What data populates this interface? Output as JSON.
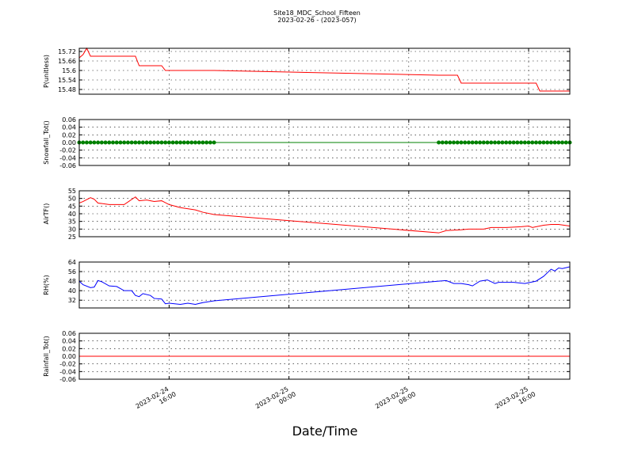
{
  "chart_data": [
    {
      "type": "line",
      "title": "Site18_MDC_School_Fifteen",
      "subtitle": "2023-02-26 - (2023-057)",
      "ylabel": "P(unitless)",
      "ylim": [
        15.45,
        15.74
      ],
      "yticks": [
        15.48,
        15.54,
        15.6,
        {
          "value": 15.66,
          "label": "15.66"
        },
        15.72
      ],
      "grid": true,
      "x": [
        "2023-02-24 10:00",
        "2023-02-24 10:15",
        "2023-02-24 10:30",
        "2023-02-24 10:45",
        "2023-02-24 13:45",
        "2023-02-24 14:00",
        "2023-02-24 15:30",
        "2023-02-24 15:45",
        "2023-02-24 19:00",
        "2023-02-25 10:00",
        "2023-02-25 11:15",
        "2023-02-25 11:30",
        "2023-02-25 16:30",
        "2023-02-25 16:45",
        "2023-02-25 18:45"
      ],
      "series": [
        {
          "color": "#ff0000",
          "values": [
            15.68,
            15.7,
            15.74,
            15.69,
            15.69,
            15.63,
            15.63,
            15.6,
            15.6,
            15.57,
            15.57,
            15.52,
            15.52,
            15.47,
            15.47
          ]
        }
      ]
    },
    {
      "type": "line",
      "ylabel": "Snowfall_Tot()",
      "marker": "o",
      "ylim": [
        -0.06,
        0.06
      ],
      "yticks": [
        -0.06,
        -0.04,
        -0.02,
        {
          "value": 0,
          "label": "0.00"
        },
        0.02,
        0.04,
        0.06
      ],
      "grid": true,
      "x": [
        "2023-02-24 10:00",
        "2023-02-24 10:15",
        "2023-02-24 10:30",
        "2023-02-24 10:45",
        "2023-02-24 11:00",
        "2023-02-24 11:15",
        "2023-02-24 11:30",
        "2023-02-24 11:45",
        "2023-02-24 12:00",
        "2023-02-24 12:15",
        "2023-02-24 12:30",
        "2023-02-24 12:45",
        "2023-02-24 13:00",
        "2023-02-24 13:15",
        "2023-02-24 13:30",
        "2023-02-24 13:45",
        "2023-02-24 14:00",
        "2023-02-24 14:15",
        "2023-02-24 14:30",
        "2023-02-24 14:45",
        "2023-02-24 15:00",
        "2023-02-24 15:15",
        "2023-02-24 15:30",
        "2023-02-24 15:45",
        "2023-02-24 16:00",
        "2023-02-24 16:15",
        "2023-02-24 16:30",
        "2023-02-24 16:45",
        "2023-02-24 17:00",
        "2023-02-24 17:15",
        "2023-02-24 17:30",
        "2023-02-24 17:45",
        "2023-02-24 18:00",
        "2023-02-24 18:15",
        "2023-02-24 18:30",
        "2023-02-24 18:45",
        "2023-02-24 19:00",
        "2023-02-25 10:00",
        "2023-02-25 10:15",
        "2023-02-25 10:30",
        "2023-02-25 10:45",
        "2023-02-25 11:00",
        "2023-02-25 11:15",
        "2023-02-25 11:30",
        "2023-02-25 11:45",
        "2023-02-25 12:00",
        "2023-02-25 12:15",
        "2023-02-25 12:30",
        "2023-02-25 12:45",
        "2023-02-25 13:00",
        "2023-02-25 13:15",
        "2023-02-25 13:30",
        "2023-02-25 13:45",
        "2023-02-25 14:00",
        "2023-02-25 14:15",
        "2023-02-25 14:30",
        "2023-02-25 14:45",
        "2023-02-25 15:00",
        "2023-02-25 15:15",
        "2023-02-25 15:30",
        "2023-02-25 15:45",
        "2023-02-25 16:00",
        "2023-02-25 16:15",
        "2023-02-25 16:30",
        "2023-02-25 16:45",
        "2023-02-25 17:00",
        "2023-02-25 17:15",
        "2023-02-25 17:30",
        "2023-02-25 17:45",
        "2023-02-25 18:00",
        "2023-02-25 18:15",
        "2023-02-25 18:30",
        "2023-02-25 18:45"
      ],
      "series": [
        {
          "color": "#008000",
          "values": [
            0,
            0,
            0,
            0,
            0,
            0,
            0,
            0,
            0,
            0,
            0,
            0,
            0,
            0,
            0,
            0,
            0,
            0,
            0,
            0,
            0,
            0,
            0,
            0,
            0,
            0,
            0,
            0,
            0,
            0,
            0,
            0,
            0,
            0,
            0,
            0,
            0,
            0,
            0,
            0,
            0,
            0,
            0,
            0,
            0,
            0,
            0,
            0,
            0,
            0,
            0,
            0,
            0,
            0,
            0,
            0,
            0,
            0,
            0,
            0,
            0,
            0,
            0,
            0,
            0,
            0,
            0,
            0,
            0,
            0,
            0,
            0,
            0
          ]
        }
      ]
    },
    {
      "type": "line",
      "ylabel": "AirTF()",
      "ylim": [
        25,
        55
      ],
      "yticks": [
        25,
        30,
        35,
        40,
        45,
        50,
        55
      ],
      "grid": true,
      "x": [
        "2023-02-24 10:00",
        "2023-02-24 10:15",
        "2023-02-24 10:45",
        "2023-02-24 11:00",
        "2023-02-24 11:15",
        "2023-02-24 12:00",
        "2023-02-24 13:00",
        "2023-02-24 13:45",
        "2023-02-24 14:00",
        "2023-02-24 14:30",
        "2023-02-24 15:00",
        "2023-02-24 15:30",
        "2023-02-24 16:00",
        "2023-02-24 16:45",
        "2023-02-24 17:45",
        "2023-02-24 18:15",
        "2023-02-24 19:00",
        "2023-02-25 10:00",
        "2023-02-25 10:30",
        "2023-02-25 11:30",
        "2023-02-25 12:00",
        "2023-02-25 13:00",
        "2023-02-25 13:30",
        "2023-02-25 14:30",
        "2023-02-25 15:30",
        "2023-02-25 16:00",
        "2023-02-25 16:15",
        "2023-02-25 17:00",
        "2023-02-25 17:30",
        "2023-02-25 18:00",
        "2023-02-25 18:45"
      ],
      "series": [
        {
          "color": "#ff0000",
          "values": [
            47,
            48,
            50.5,
            49.5,
            47,
            46,
            46,
            51,
            48.5,
            49,
            48,
            48.5,
            46,
            44,
            42.5,
            41,
            39.5,
            27.5,
            29,
            29.5,
            30,
            30,
            31,
            31,
            31.5,
            32,
            31,
            32.5,
            33,
            33,
            32
          ]
        }
      ]
    },
    {
      "type": "line",
      "ylabel": "RH(%)",
      "ylim": [
        25.5,
        64
      ],
      "yticks": [
        32,
        40,
        48,
        56,
        64
      ],
      "grid": true,
      "x": [
        "2023-02-24 10:00",
        "2023-02-24 10:15",
        "2023-02-24 10:45",
        "2023-02-24 11:00",
        "2023-02-24 11:15",
        "2023-02-24 11:30",
        "2023-02-24 12:00",
        "2023-02-24 12:30",
        "2023-02-24 13:00",
        "2023-02-24 13:30",
        "2023-02-24 13:45",
        "2023-02-24 14:00",
        "2023-02-24 14:15",
        "2023-02-24 14:45",
        "2023-02-24 15:00",
        "2023-02-24 15:30",
        "2023-02-24 15:45",
        "2023-02-24 16:00",
        "2023-02-24 16:45",
        "2023-02-24 17:15",
        "2023-02-24 17:45",
        "2023-02-24 18:15",
        "2023-02-24 18:45",
        "2023-02-24 19:00",
        "2023-02-25 10:00",
        "2023-02-25 10:30",
        "2023-02-25 11:00",
        "2023-02-25 11:30",
        "2023-02-25 12:00",
        "2023-02-25 12:15",
        "2023-02-25 12:45",
        "2023-02-25 13:15",
        "2023-02-25 13:45",
        "2023-02-25 14:00",
        "2023-02-25 15:00",
        "2023-02-25 15:45",
        "2023-02-25 16:30",
        "2023-02-25 17:00",
        "2023-02-25 17:30",
        "2023-02-25 17:45",
        "2023-02-25 18:00",
        "2023-02-25 18:15",
        "2023-02-25 18:45"
      ],
      "series": [
        {
          "color": "#0000ff",
          "values": [
            48,
            45,
            42.5,
            43,
            48.5,
            47.5,
            44,
            43.5,
            40,
            40,
            36,
            35,
            37.5,
            36,
            33.5,
            33,
            29,
            29.5,
            28.5,
            29.5,
            28.5,
            30,
            31,
            31.5,
            48,
            48.5,
            46,
            46,
            45,
            44,
            48,
            49,
            46,
            47,
            47,
            46,
            48,
            52,
            58,
            56.5,
            59,
            58.5,
            60
          ]
        }
      ]
    },
    {
      "type": "line",
      "ylabel": "Rainfall_Tot()",
      "xlabel": "Date/Time",
      "ylim": [
        -0.06,
        0.06
      ],
      "yticks": [
        -0.06,
        -0.04,
        -0.02,
        {
          "value": 0,
          "label": "0.00"
        },
        0.02,
        0.04,
        0.06
      ],
      "grid": true,
      "xlim": [
        "2023-02-24 10:00",
        "2023-02-25 18:45"
      ],
      "xticks": [
        "2023-02-24 16:00",
        "2023-02-25 00:00",
        "2023-02-25 08:00",
        "2023-02-25 16:00"
      ],
      "x": [
        "2023-02-24 10:00",
        "2023-02-24 19:00",
        "2023-02-25 10:00",
        "2023-02-25 18:45"
      ],
      "series": [
        {
          "color": "#ff0000",
          "values": [
            0,
            0,
            0,
            0
          ]
        }
      ]
    }
  ]
}
